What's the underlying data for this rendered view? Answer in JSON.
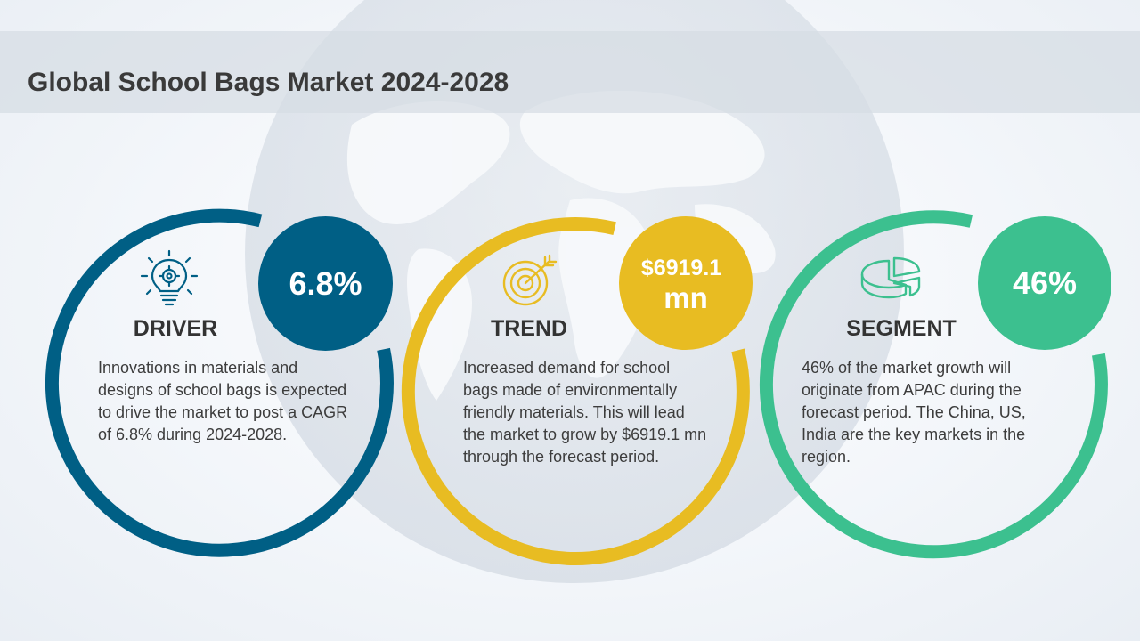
{
  "title": "Global School Bags Market 2024-2028",
  "colors": {
    "driver": "#005f85",
    "trend": "#e8bc22",
    "segment": "#3cc08f",
    "title_band": "#d6dce3"
  },
  "driver": {
    "icon": "lightbulb-gear-icon",
    "label": "DRIVER",
    "value": "6.8%",
    "text": "Innovations in materials and designs of school bags is expected to drive the market to post a CAGR of 6.8% during 2024-2028."
  },
  "trend": {
    "icon": "target-arrow-icon",
    "label": "TREND",
    "value_line1": "$6919.1",
    "value_line2": "mn",
    "text": "Increased demand for school bags made of environmentally friendly materials. This will lead the market to grow by $6919.1 mn through the forecast period."
  },
  "segment": {
    "icon": "pie-chart-icon",
    "label": "SEGMENT",
    "value": "46%",
    "text": "46% of the market growth will originate from APAC during the forecast period. The China, US, India are the key markets in the region."
  }
}
